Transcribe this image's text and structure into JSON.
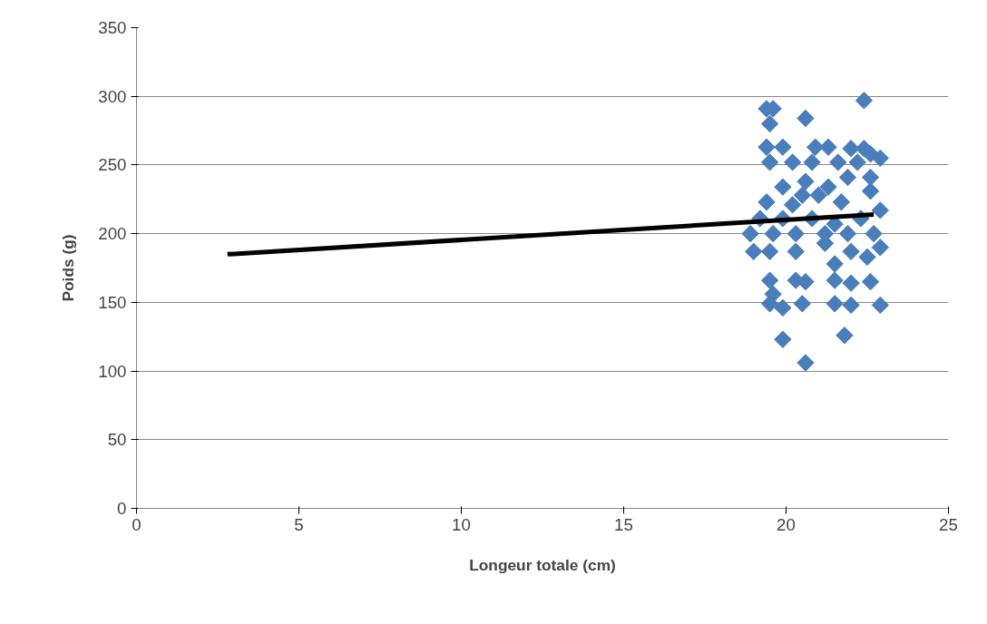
{
  "chart_data": {
    "type": "scatter",
    "xlabel": "Longeur totale (cm)",
    "ylabel": "Poids (g)",
    "xlim": [
      0,
      25
    ],
    "xticks": [
      0,
      5,
      10,
      15,
      20,
      25
    ],
    "ylim": [
      0,
      350
    ],
    "yticks": [
      0,
      50,
      100,
      150,
      200,
      250,
      300,
      350
    ],
    "grid": "y",
    "marker": "diamond",
    "series": [
      {
        "color": "#4a7ebb",
        "x": [
          19.4,
          19.6,
          19.5,
          20.6,
          22.4,
          19.4,
          19.9,
          20.9,
          21.3,
          22.0,
          22.4,
          22.6,
          22.9,
          19.5,
          20.2,
          20.8,
          21.6,
          22.2,
          21.9,
          22.6,
          19.9,
          20.6,
          21.3,
          22.6,
          20.5,
          21.0,
          19.4,
          20.2,
          21.7,
          22.9,
          19.2,
          19.9,
          20.8,
          21.5,
          22.3,
          18.9,
          19.6,
          20.3,
          21.2,
          21.9,
          22.7,
          19.0,
          19.5,
          20.3,
          21.2,
          22.0,
          22.5,
          22.9,
          21.5,
          19.5,
          19.6,
          20.3,
          20.6,
          21.5,
          22.0,
          22.6,
          19.5,
          19.9,
          20.5,
          21.5,
          22.0,
          22.9,
          19.9,
          21.8,
          20.6
        ],
        "values": [
          291,
          291,
          280,
          284,
          297,
          263,
          263,
          263,
          263,
          262,
          262,
          258,
          255,
          252,
          252,
          252,
          252,
          252,
          241,
          241,
          234,
          238,
          234,
          231,
          228,
          228,
          223,
          221,
          223,
          217,
          211,
          211,
          211,
          207,
          211,
          200,
          200,
          200,
          200,
          200,
          200,
          187,
          187,
          187,
          193,
          187,
          183,
          190,
          178,
          166,
          156,
          166,
          165,
          166,
          164,
          165,
          149,
          146,
          149,
          149,
          148,
          148,
          123,
          126,
          106
        ]
      },
      {
        "type": "line",
        "color": "#000000",
        "line_style": "solid",
        "marker": "none",
        "x": [
          2.8,
          22.7
        ],
        "values": [
          185,
          214
        ]
      }
    ]
  }
}
